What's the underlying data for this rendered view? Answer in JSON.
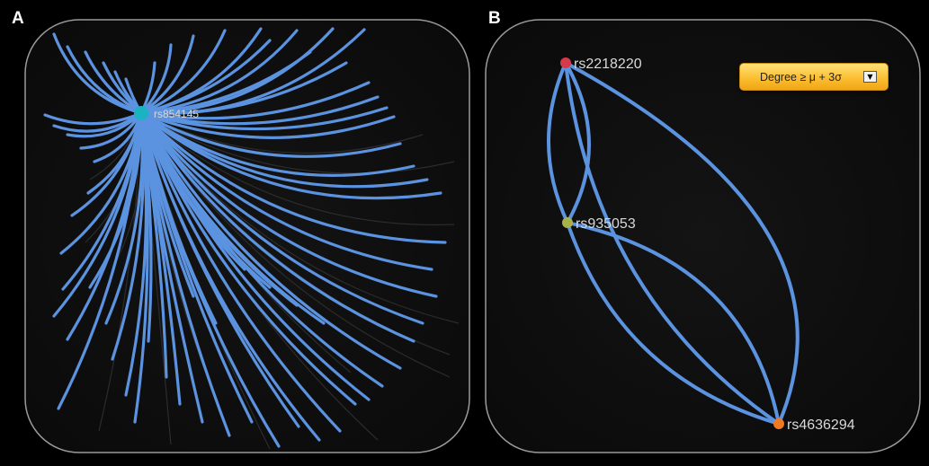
{
  "panels": [
    {
      "letter": "A",
      "nodes": [
        {
          "label": "rs854145",
          "color": "#19b3c2"
        }
      ]
    },
    {
      "letter": "B",
      "nodes": [
        {
          "label": "rs2218220",
          "color": "#d63a4a"
        },
        {
          "label": "rs935053",
          "color": "#a8b24a"
        },
        {
          "label": "rs4636294",
          "color": "#f07a22"
        }
      ],
      "filter": {
        "label": "Degree ≥ μ + 3σ",
        "icon": "chevron-down-icon"
      }
    }
  ],
  "colors": {
    "background": "#0d0d0d",
    "edge": "#5b93e0",
    "faint_edge": "#2c2c2c",
    "label": "#d9d9d9",
    "accent": "#fbbf32"
  }
}
